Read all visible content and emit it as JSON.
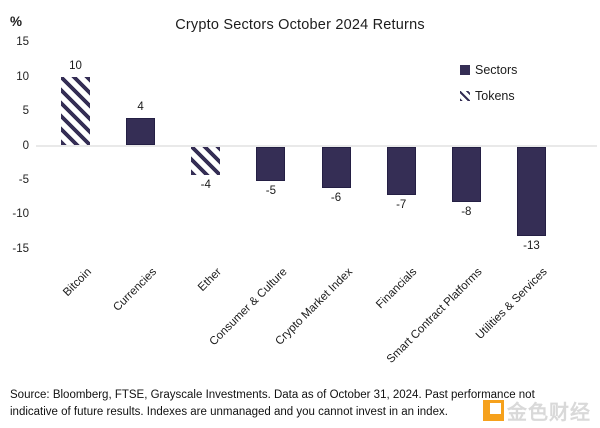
{
  "chart_data": {
    "type": "bar",
    "title": "Crypto Sectors October 2024 Returns",
    "unit_label": "%",
    "categories": [
      "Bitcoin",
      "Currencies",
      "Ether",
      "Consumer & Culture",
      "Crypto Market Index",
      "Financials",
      "Smart Contract Platforms",
      "Utilities & Services"
    ],
    "values": [
      10,
      4,
      -4,
      -5,
      -6,
      -7,
      -8,
      -13
    ],
    "styles": [
      "token",
      "sector",
      "token",
      "sector",
      "sector",
      "sector",
      "sector",
      "sector"
    ],
    "ylim": [
      -15,
      15
    ],
    "yticks": [
      15,
      10,
      5,
      0,
      -5,
      -10,
      -15
    ],
    "grid": "zero-line-only",
    "legend_position": "top-right",
    "legend": [
      {
        "label": "Sectors",
        "swatch": "solid"
      },
      {
        "label": "Tokens",
        "swatch": "hatched"
      }
    ],
    "colors": {
      "bar": "#352e55",
      "zero_line": "#e9e9e9",
      "hatch_background": "#ffffff"
    }
  },
  "footer": {
    "source_text": "Source: Bloomberg, FTSE, Grayscale Investments. Data as of October 31, 2024. Past performance not indicative of future results. Indexes are unmanaged and you cannot invest in an index."
  },
  "watermark": {
    "text": "金色财经",
    "logo_color": "#f6a11c"
  }
}
